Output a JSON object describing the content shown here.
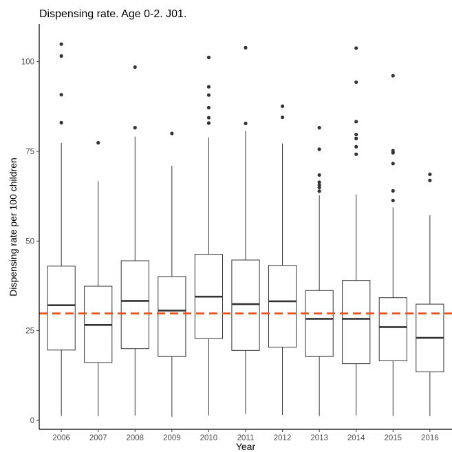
{
  "chart_data": {
    "type": "boxplot",
    "title": "Dispensing rate. Age 0-2. J01.",
    "xlabel": "Year",
    "ylabel": "Dispensing rate per 100 children",
    "ylim": [
      -2.5,
      110.5
    ],
    "y_ticks": [
      0,
      25,
      50,
      75,
      100
    ],
    "grid": false,
    "reference_line": {
      "value": 29.8,
      "color": "#E8501E",
      "style": "dashed"
    },
    "categories": [
      "2006",
      "2007",
      "2008",
      "2009",
      "2010",
      "2011",
      "2012",
      "2013",
      "2014",
      "2015",
      "2016"
    ],
    "boxes": [
      {
        "whisker_low": 1.2,
        "q1": 19.6,
        "median": 32.1,
        "q3": 43.0,
        "whisker_high": 77.3,
        "outliers": [
          83.0,
          90.8,
          101.6,
          104.9
        ]
      },
      {
        "whisker_low": 1.2,
        "q1": 16.1,
        "median": 26.6,
        "q3": 37.4,
        "whisker_high": 66.7,
        "outliers": [
          77.4
        ]
      },
      {
        "whisker_low": 1.3,
        "q1": 20.0,
        "median": 33.3,
        "q3": 44.5,
        "whisker_high": 79.1,
        "outliers": [
          81.6,
          98.5
        ]
      },
      {
        "whisker_low": 0.9,
        "q1": 17.8,
        "median": 30.6,
        "q3": 40.1,
        "whisker_high": 71.0,
        "outliers": [
          80.0
        ]
      },
      {
        "whisker_low": 1.4,
        "q1": 22.8,
        "median": 34.5,
        "q3": 46.3,
        "whisker_high": 78.9,
        "outliers": [
          82.9,
          84.4,
          87.2,
          90.7,
          93.0,
          101.2
        ]
      },
      {
        "whisker_low": 1.8,
        "q1": 19.5,
        "median": 32.4,
        "q3": 44.7,
        "whisker_high": 80.7,
        "outliers": [
          82.8,
          103.9
        ]
      },
      {
        "whisker_low": 1.5,
        "q1": 20.4,
        "median": 33.2,
        "q3": 43.2,
        "whisker_high": 77.2,
        "outliers": [
          84.5,
          87.6
        ]
      },
      {
        "whisker_low": 1.2,
        "q1": 17.8,
        "median": 28.3,
        "q3": 36.2,
        "whisker_high": 62.8,
        "outliers": [
          63.9,
          64.9,
          65.6,
          66.4,
          68.4,
          75.6,
          81.6
        ]
      },
      {
        "whisker_low": 1.4,
        "q1": 15.8,
        "median": 28.3,
        "q3": 39.0,
        "whisker_high": 63.0,
        "outliers": [
          74.2,
          76.3,
          78.6,
          79.7,
          83.3,
          94.3,
          103.8
        ]
      },
      {
        "whisker_low": 1.2,
        "q1": 16.6,
        "median": 26.0,
        "q3": 34.2,
        "whisker_high": 59.4,
        "outliers": [
          61.3,
          64.0,
          71.6,
          74.6,
          75.2,
          96.1
        ]
      },
      {
        "whisker_low": 1.2,
        "q1": 13.5,
        "median": 23.0,
        "q3": 32.4,
        "whisker_high": 57.2,
        "outliers": [
          66.9,
          68.6
        ]
      }
    ]
  }
}
